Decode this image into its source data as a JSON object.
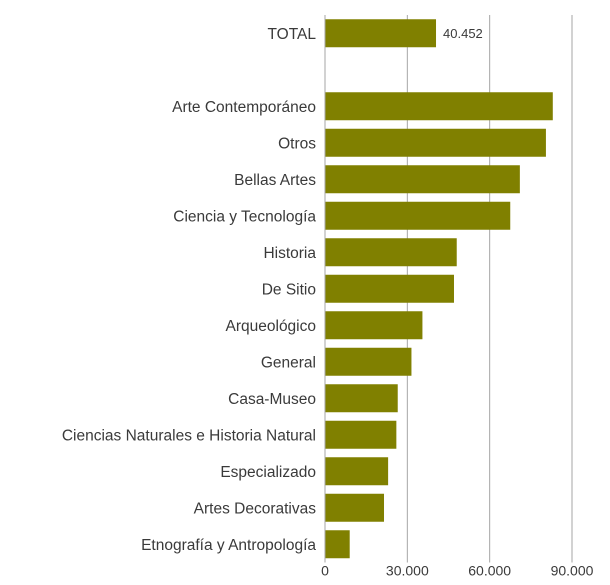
{
  "chart_data": {
    "type": "bar",
    "orientation": "horizontal",
    "categories": [
      "TOTAL",
      "",
      "Arte Contemporáneo",
      "Otros",
      "Bellas Artes",
      "Ciencia y Tecnología",
      "Historia",
      "De Sitio",
      "Arqueológico",
      "General",
      "Casa-Museo",
      "Ciencias Naturales e Historia Natural",
      "Especializado",
      "Artes Decorativas",
      "Etnografía y Antropología"
    ],
    "values": [
      40452,
      null,
      83000,
      80500,
      71000,
      67500,
      48000,
      47000,
      35500,
      31500,
      26500,
      26000,
      23000,
      21500,
      9000
    ],
    "data_labels": [
      "40.452",
      "",
      "",
      "",
      "",
      "",
      "",
      "",
      "",
      "",
      "",
      "",
      "",
      "",
      ""
    ],
    "xlim": [
      0,
      90000
    ],
    "xticks": [
      0,
      30000,
      60000,
      90000
    ],
    "xtick_labels": [
      "0",
      "30.000",
      "60.000",
      "90.000"
    ],
    "title": "",
    "xlabel": "",
    "ylabel": "",
    "grid": "vertical",
    "legend": "none",
    "colors": {
      "bar": "#808000",
      "grid": "#a6a6a6",
      "text": "#3a3a3a"
    }
  }
}
